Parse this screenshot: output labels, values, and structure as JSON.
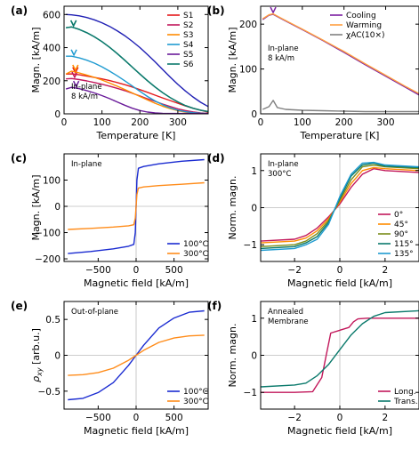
{
  "chart_data": [
    {
      "panel": "(a)",
      "type": "line",
      "xlabel": "Temperature [K]",
      "ylabel": "Magn. [kA/m]",
      "xlim": [
        0,
        380
      ],
      "ylim": [
        0,
        650
      ],
      "xticks": [
        0,
        100,
        200,
        300
      ],
      "yticks": [
        0,
        200,
        400,
        600
      ],
      "annotation": [
        "In-plane",
        "8 kA/m"
      ],
      "legend_position": "top-right",
      "series": [
        {
          "name": "S1",
          "color": "#e41a1c",
          "x": [
            5,
            20,
            40,
            60,
            80,
            100,
            120,
            140,
            160,
            180,
            200,
            220,
            240,
            260,
            280,
            300,
            320,
            340,
            360,
            380
          ],
          "y": [
            240,
            241,
            236,
            228,
            220,
            211,
            201,
            189,
            176,
            162,
            146,
            130,
            113,
            96,
            80,
            64,
            48,
            34,
            22,
            10
          ],
          "marker_x": 30
        },
        {
          "name": "S2",
          "color": "#c2185b",
          "x": [
            5,
            20,
            40,
            60,
            80,
            100,
            120,
            140,
            160,
            180,
            200,
            220,
            240,
            260,
            280,
            300,
            320,
            340,
            360,
            380
          ],
          "y": [
            211,
            213,
            207,
            199,
            189,
            179,
            167,
            154,
            140,
            124,
            108,
            91,
            75,
            59,
            44,
            30,
            20,
            12,
            6,
            3
          ],
          "marker_x": 28
        },
        {
          "name": "S3",
          "color": "#ff8c00",
          "x": [
            5,
            20,
            40,
            60,
            80,
            100,
            120,
            140,
            160,
            180,
            200,
            220,
            240,
            260,
            280,
            300,
            320,
            340,
            360,
            380
          ],
          "y": [
            240,
            258,
            247,
            234,
            220,
            204,
            186,
            167,
            147,
            126,
            105,
            84,
            64,
            46,
            31,
            19,
            11,
            6,
            3,
            2
          ],
          "marker_x": 30
        },
        {
          "name": "S4",
          "color": "#1f9bd1",
          "x": [
            5,
            20,
            40,
            60,
            80,
            100,
            120,
            140,
            160,
            180,
            200,
            220,
            240,
            260,
            280,
            300,
            320,
            340,
            360,
            380
          ],
          "y": [
            348,
            348,
            338,
            324,
            306,
            284,
            258,
            230,
            200,
            168,
            136,
            105,
            78,
            55,
            36,
            22,
            13,
            7,
            4,
            2
          ],
          "marker_x": 26
        },
        {
          "name": "S5",
          "color": "#6a1b9a",
          "x": [
            5,
            20,
            40,
            60,
            80,
            100,
            120,
            140,
            160,
            180,
            200,
            220,
            240,
            260,
            280,
            300,
            320,
            340,
            360,
            380
          ],
          "y": [
            150,
            160,
            152,
            140,
            126,
            110,
            92,
            72,
            52,
            34,
            20,
            11,
            6,
            3,
            2,
            2,
            2,
            2,
            2,
            2
          ],
          "marker_x": 32
        },
        {
          "name": "S6",
          "color": "#0b7a6c",
          "x": [
            5,
            20,
            40,
            60,
            80,
            100,
            120,
            140,
            160,
            180,
            200,
            220,
            240,
            260,
            280,
            300,
            320,
            340,
            360,
            380
          ],
          "y": [
            520,
            525,
            510,
            490,
            465,
            436,
            402,
            364,
            324,
            282,
            240,
            200,
            162,
            128,
            98,
            72,
            50,
            34,
            22,
            14
          ],
          "marker_x": 25
        },
        {
          "name": "S6",
          "color": "#0b7a6c",
          "x": [
            5,
            20,
            40,
            60,
            80,
            100,
            120,
            140,
            160,
            180,
            200,
            220,
            240,
            260,
            280,
            300,
            320,
            340,
            360,
            380
          ],
          "y": [
            520,
            525,
            510,
            490,
            465,
            436,
            402,
            364,
            324,
            282,
            240,
            200,
            162,
            128,
            98,
            72,
            50,
            34,
            22,
            14
          ],
          "marker_x": 25
        },
        {
          "name": "",
          "color": "#1f1fb4",
          "x": [
            5,
            20,
            40,
            60,
            80,
            100,
            120,
            140,
            160,
            180,
            200,
            220,
            240,
            260,
            280,
            300,
            320,
            340,
            360,
            380
          ],
          "y": [
            600,
            598,
            592,
            582,
            568,
            550,
            528,
            502,
            472,
            438,
            400,
            358,
            314,
            268,
            222,
            178,
            138,
            102,
            70,
            44
          ],
          "marker_x": null
        }
      ]
    },
    {
      "panel": "(b)",
      "type": "line",
      "xlabel": "Temperature [K]",
      "ylabel": "Magn. [kA/m]",
      "xlim": [
        0,
        380
      ],
      "ylim": [
        0,
        240
      ],
      "xticks": [
        0,
        100,
        200,
        300
      ],
      "yticks": [
        0,
        100,
        200
      ],
      "annotation": [
        "In-plane",
        "8 kA/m"
      ],
      "legend_position": "top-right",
      "series": [
        {
          "name": "Cooling",
          "color": "#7b1fa2",
          "x": [
            5,
            20,
            30,
            50,
            75,
            100,
            150,
            200,
            250,
            300,
            350,
            380
          ],
          "y": [
            210,
            220,
            222,
            212,
            200,
            188,
            163,
            137,
            110,
            84,
            58,
            42
          ],
          "marker_x": 30
        },
        {
          "name": "Warming",
          "color": "#ff9f40",
          "x": [
            5,
            20,
            30,
            50,
            75,
            100,
            150,
            200,
            250,
            300,
            350,
            380
          ],
          "y": [
            212,
            221,
            223,
            213,
            201,
            189,
            164,
            139,
            112,
            86,
            60,
            45
          ]
        },
        {
          "name": "χAC(10×)",
          "color": "#808080",
          "x": [
            5,
            20,
            30,
            40,
            60,
            100,
            150,
            200,
            250,
            300,
            350,
            380
          ],
          "y": [
            10,
            16,
            30,
            14,
            10,
            8,
            7,
            6,
            5,
            5,
            5,
            5
          ]
        }
      ]
    },
    {
      "panel": "(c)",
      "type": "line",
      "xlabel": "Magnetic field [kA/m]",
      "ylabel": "Magn. [kA/m]",
      "xlim": [
        -950,
        950
      ],
      "ylim": [
        -210,
        200
      ],
      "xticks": [
        -500,
        0,
        500
      ],
      "yticks": [
        -200,
        -100,
        0,
        100
      ],
      "annotation": [
        "In-plane"
      ],
      "legend_position": "bottom-right",
      "series": [
        {
          "name": "100°C",
          "color": "#1a2bd1",
          "x": [
            -900,
            -600,
            -300,
            -100,
            -30,
            -10,
            0,
            10,
            30,
            100,
            300,
            600,
            900
          ],
          "y": [
            -180,
            -172,
            -162,
            -152,
            -145,
            -100,
            0,
            100,
            145,
            152,
            162,
            172,
            178
          ]
        },
        {
          "name": "300°C",
          "color": "#ff8c1a",
          "x": [
            -900,
            -600,
            -300,
            -100,
            -30,
            -10,
            0,
            10,
            30,
            100,
            300,
            600,
            900
          ],
          "y": [
            -88,
            -84,
            -79,
            -74,
            -70,
            -45,
            0,
            45,
            70,
            74,
            79,
            84,
            90
          ]
        }
      ]
    },
    {
      "panel": "(d)",
      "type": "line",
      "xlabel": "Magnetic field [kA/m]",
      "ylabel": "Norm. magn.",
      "xlim": [
        -3.5,
        3.5
      ],
      "ylim": [
        -1.45,
        1.45
      ],
      "xticks": [
        -2,
        0,
        2
      ],
      "yticks": [
        -1,
        0,
        1
      ],
      "annotation": [
        "In-plane",
        "300°C"
      ],
      "legend_position": "bottom-right",
      "series": [
        {
          "name": "0°",
          "color": "#c2185b",
          "x": [
            -3.5,
            -2,
            -1.5,
            -1,
            -0.5,
            0,
            0.5,
            1,
            1.5,
            2,
            3.5
          ],
          "y": [
            -0.9,
            -0.85,
            -0.75,
            -0.55,
            -0.25,
            0.1,
            0.55,
            0.9,
            1.05,
            1.0,
            0.95
          ]
        },
        {
          "name": "45°",
          "color": "#ff8c00",
          "x": [
            -3.5,
            -2,
            -1.5,
            -1,
            -0.5,
            0,
            0.5,
            1,
            1.5,
            2,
            3.5
          ],
          "y": [
            -0.95,
            -0.9,
            -0.82,
            -0.62,
            -0.3,
            0.15,
            0.65,
            1.0,
            1.08,
            1.05,
            1.0
          ]
        },
        {
          "name": "90°",
          "color": "#7a8c1a",
          "x": [
            -3.5,
            -2,
            -1.5,
            -1,
            -0.5,
            0,
            0.5,
            1,
            1.5,
            2,
            3.5
          ],
          "y": [
            -1.05,
            -1.0,
            -0.9,
            -0.7,
            -0.35,
            0.2,
            0.75,
            1.1,
            1.15,
            1.1,
            1.05
          ]
        },
        {
          "name": "115°",
          "color": "#0b7a6c",
          "x": [
            -3.5,
            -2,
            -1.5,
            -1,
            -0.5,
            0,
            0.5,
            1,
            1.5,
            2,
            3.5
          ],
          "y": [
            -1.1,
            -1.05,
            -0.95,
            -0.78,
            -0.4,
            0.25,
            0.85,
            1.15,
            1.2,
            1.12,
            1.08
          ]
        },
        {
          "name": "135°",
          "color": "#1f9bd1",
          "x": [
            -3.5,
            -2,
            -1.5,
            -1,
            -0.5,
            0,
            0.5,
            1,
            1.5,
            2,
            3.5
          ],
          "y": [
            -1.15,
            -1.1,
            -1.0,
            -0.85,
            -0.45,
            0.3,
            0.9,
            1.2,
            1.22,
            1.15,
            1.1
          ]
        }
      ]
    },
    {
      "panel": "(e)",
      "type": "line",
      "xlabel": "Magnetic field [kA/m]",
      "ylabel": "ρxy [arb.u.]",
      "xlim": [
        -950,
        950
      ],
      "ylim": [
        -0.75,
        0.75
      ],
      "xticks": [
        -500,
        0,
        500
      ],
      "yticks": [
        -0.5,
        0,
        0.5
      ],
      "annotation": [
        "Out-of-plane"
      ],
      "legend_position": "bottom-right",
      "series": [
        {
          "name": "100°C",
          "color": "#1a2bd1",
          "x": [
            -900,
            -700,
            -500,
            -300,
            -100,
            0,
            100,
            300,
            500,
            700,
            900
          ],
          "y": [
            -0.62,
            -0.6,
            -0.52,
            -0.38,
            -0.14,
            0.0,
            0.14,
            0.38,
            0.52,
            0.6,
            0.62
          ]
        },
        {
          "name": "300°C",
          "color": "#ff8c1a",
          "x": [
            -900,
            -700,
            -500,
            -300,
            -100,
            0,
            100,
            300,
            500,
            700,
            900
          ],
          "y": [
            -0.28,
            -0.27,
            -0.24,
            -0.18,
            -0.07,
            0.0,
            0.07,
            0.18,
            0.24,
            0.27,
            0.28
          ]
        }
      ]
    },
    {
      "panel": "(f)",
      "type": "line",
      "xlabel": "Magnetic field [kA/m]",
      "ylabel": "Norm. magn.",
      "xlim": [
        -3.5,
        3.5
      ],
      "ylim": [
        -1.45,
        1.45
      ],
      "xticks": [
        -2,
        0,
        2
      ],
      "yticks": [
        -1,
        0,
        1
      ],
      "annotation": [
        "Annealed",
        "Membrane"
      ],
      "legend_position": "bottom-right",
      "series": [
        {
          "name": "Long.",
          "color": "#c2185b",
          "x": [
            -3.5,
            -2,
            -1.2,
            -0.8,
            -0.6,
            -0.4,
            0.4,
            0.6,
            0.8,
            1.2,
            2,
            3.5
          ],
          "y": [
            -1.0,
            -1.0,
            -0.98,
            -0.6,
            0.0,
            0.6,
            0.75,
            0.9,
            0.98,
            1.0,
            1.0,
            1.0
          ]
        },
        {
          "name": "Trans.",
          "color": "#0b7a6c",
          "x": [
            -3.5,
            -2,
            -1.5,
            -1,
            -0.5,
            0,
            0.5,
            1,
            1.5,
            2,
            3.5
          ],
          "y": [
            -0.85,
            -0.8,
            -0.75,
            -0.55,
            -0.25,
            0.15,
            0.55,
            0.85,
            1.05,
            1.15,
            1.2
          ]
        }
      ]
    }
  ]
}
